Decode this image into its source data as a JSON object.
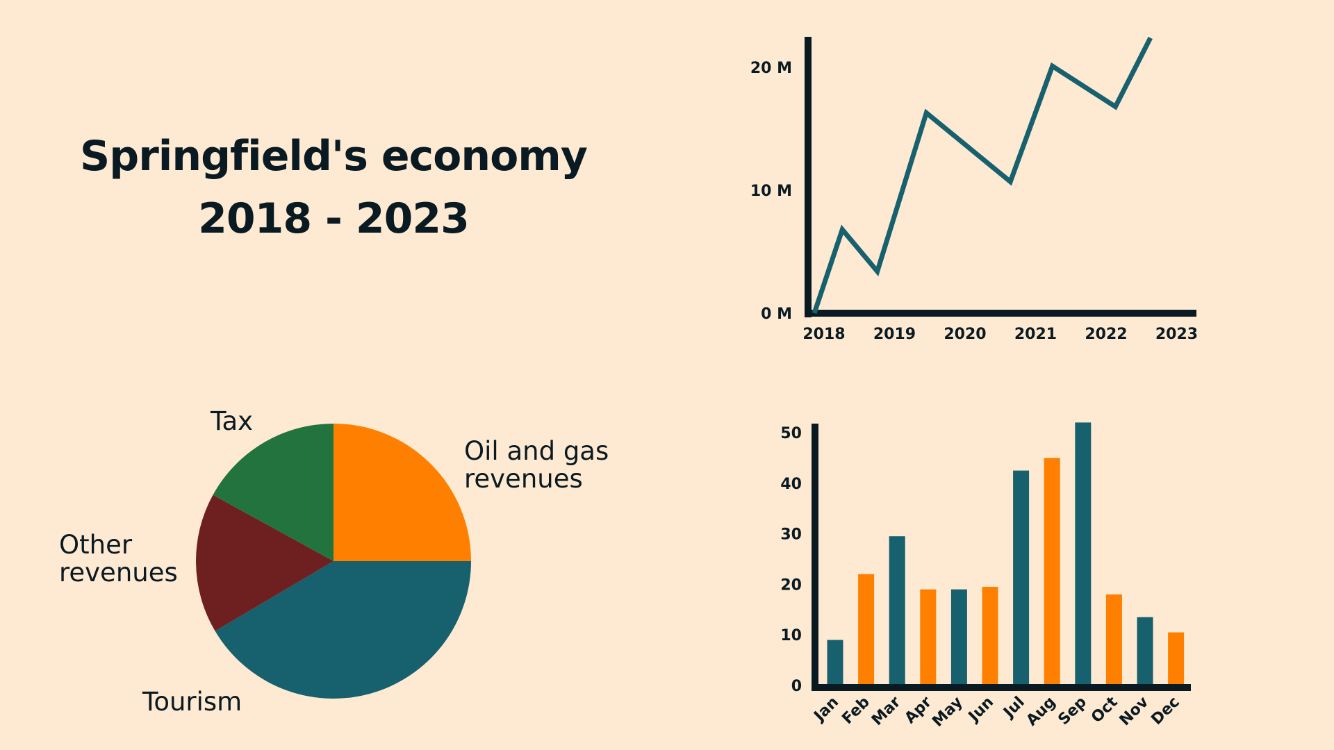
{
  "title": {
    "line1": "Springfield's economy",
    "line2": "2018 - 2023"
  },
  "colors": {
    "background": "#FEEAD2",
    "ink": "#0A1A22",
    "teal": "#17606D",
    "orange": "#FF7F00",
    "green": "#22733E",
    "maroon": "#6E2020"
  },
  "chart_data": [
    {
      "type": "line",
      "title": "",
      "x": [
        2018.0,
        2018.4,
        2018.9,
        2019.6,
        2020.2,
        2020.8,
        2021.4,
        2022.3,
        2022.8
      ],
      "y": [
        0,
        6.8,
        3.4,
        16.3,
        13.5,
        10.7,
        20.1,
        16.8,
        22.4
      ],
      "xticks": [
        "2018",
        "2019",
        "2020",
        "2021",
        "2022",
        "2023"
      ],
      "yticks": [
        "0 M",
        "10 M",
        "20 M"
      ],
      "ylim": [
        0,
        22
      ],
      "xlabel": "",
      "ylabel": "",
      "color": "#17606D"
    },
    {
      "type": "pie",
      "title": "",
      "slices": [
        {
          "label": "Oil and gas revenues",
          "value": 25,
          "color": "#FF7F00"
        },
        {
          "label": "Tourism",
          "value": 41.5,
          "color": "#17606D"
        },
        {
          "label": "Other revenues",
          "value": 16.5,
          "color": "#6E2020"
        },
        {
          "label": "Tax",
          "value": 17,
          "color": "#22733E"
        }
      ]
    },
    {
      "type": "bar",
      "title": "",
      "categories": [
        "Jan",
        "Feb",
        "Mar",
        "Apr",
        "May",
        "Jun",
        "Jul",
        "Aug",
        "Sep",
        "Oct",
        "Nov",
        "Dec"
      ],
      "values": [
        9,
        22,
        29.5,
        19,
        19,
        19.5,
        42.5,
        45,
        52,
        18,
        13.5,
        10.5
      ],
      "colors": [
        "#17606D",
        "#FF7F00",
        "#17606D",
        "#FF7F00",
        "#17606D",
        "#FF7F00",
        "#17606D",
        "#FF7F00",
        "#17606D",
        "#FF7F00",
        "#17606D",
        "#FF7F00"
      ],
      "yticks": [
        "0",
        "10",
        "20",
        "30",
        "40",
        "50"
      ],
      "ylim": [
        0,
        52
      ],
      "xlabel": "",
      "ylabel": ""
    }
  ]
}
